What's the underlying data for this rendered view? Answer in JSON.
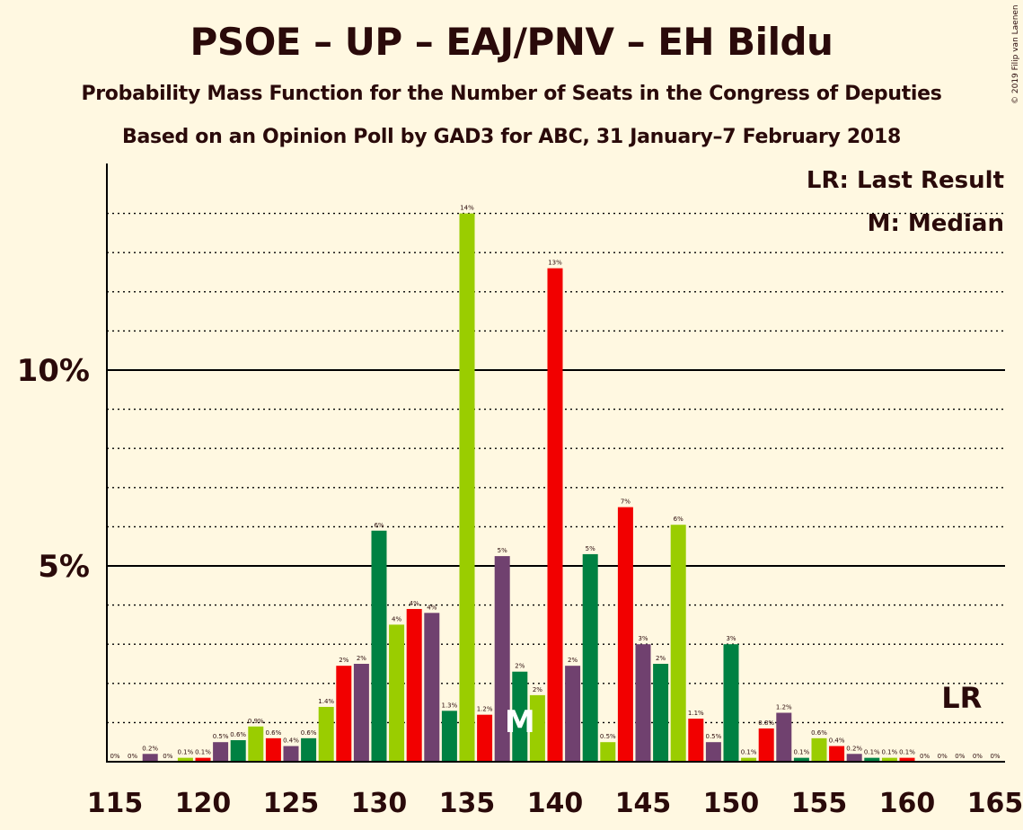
{
  "title": "PSOE – UP – EAJ/PNV – EH Bildu",
  "subtitle": "Probability Mass Function for the Number of Seats in the Congress of Deputies",
  "subtitle2": "Based on an Opinion Poll by GAD3 for ABC, 31 January–7 February 2018",
  "copyright": "© 2019 Filip van Laenen",
  "legend": {
    "last_result": "LR: Last Result",
    "median": "M: Median"
  },
  "markers": {
    "last_result_label": "LR",
    "last_result_seat": 163,
    "median_label": "M",
    "median_seat": 138
  },
  "colors": {
    "red": "#F20000",
    "lime": "#9ACD00",
    "green": "#008142",
    "purple": "#70416F",
    "background": "#FFF8E1",
    "axis": "#000000"
  },
  "chart_data": {
    "type": "bar",
    "xlabel": "",
    "ylabel": "",
    "x_ticks": [
      115,
      120,
      125,
      130,
      135,
      140,
      145,
      150,
      155,
      160,
      165
    ],
    "y_ticks": [
      "5%",
      "10%"
    ],
    "ylim": [
      0,
      15.2
    ],
    "x": [
      115,
      116,
      117,
      118,
      119,
      120,
      121,
      122,
      123,
      124,
      125,
      126,
      127,
      128,
      129,
      130,
      131,
      132,
      133,
      134,
      135,
      136,
      137,
      138,
      139,
      140,
      141,
      142,
      143,
      144,
      145,
      146,
      147,
      148,
      149,
      150,
      151,
      152,
      153,
      154,
      155,
      156,
      157,
      158,
      159,
      160,
      161,
      162,
      163,
      164,
      165
    ],
    "values": [
      0,
      0,
      0.2,
      0,
      0.1,
      0.1,
      0.5,
      0.55,
      0.9,
      0.6,
      0.4,
      0.6,
      1.4,
      2.45,
      2.5,
      5.9,
      3.5,
      3.9,
      3.8,
      1.3,
      14.0,
      1.2,
      5.25,
      2.3,
      1.7,
      12.6,
      2.45,
      5.3,
      0.5,
      6.5,
      3.0,
      2.5,
      6.05,
      1.1,
      0.5,
      3.0,
      0.1,
      0.85,
      1.25,
      0.1,
      0.6,
      0.4,
      0.2,
      0.1,
      0.1,
      0.1,
      0,
      0,
      0,
      0,
      0
    ],
    "labels": [
      "0%",
      "0%",
      "0.2%",
      "0%",
      "0.1%",
      "0.1%",
      "0.5%",
      "0.6%",
      "0.9%",
      "0.6%",
      "0.4%",
      "0.6%",
      "1.4%",
      "2%",
      "2%",
      "6%",
      "4%",
      "4%",
      "4%",
      "1.3%",
      "14%",
      "1.2%",
      "5%",
      "2%",
      "2%",
      "13%",
      "2%",
      "5%",
      "0.5%",
      "7%",
      "3%",
      "2%",
      "6%",
      "1.1%",
      "0.5%",
      "3%",
      "0.1%",
      "0.8%",
      "1.2%",
      "0.1%",
      "0.6%",
      "0.4%",
      "0.2%",
      "0.1%",
      "0.1%",
      "0.1%",
      "0%",
      "0%",
      "0%",
      "0%",
      "0%"
    ],
    "bar_colors": [
      "lime",
      "green",
      "purple",
      "red",
      "lime",
      "red",
      "purple",
      "green",
      "lime",
      "red",
      "purple",
      "green",
      "lime",
      "red",
      "purple",
      "green",
      "lime",
      "red",
      "purple",
      "green",
      "lime",
      "red",
      "purple",
      "green",
      "lime",
      "red",
      "purple",
      "green",
      "lime",
      "red",
      "purple",
      "green",
      "lime",
      "red",
      "purple",
      "green",
      "lime",
      "red",
      "purple",
      "green",
      "lime",
      "red",
      "purple",
      "green",
      "lime",
      "red",
      "purple",
      "green",
      "lime",
      "red",
      "purple"
    ]
  }
}
